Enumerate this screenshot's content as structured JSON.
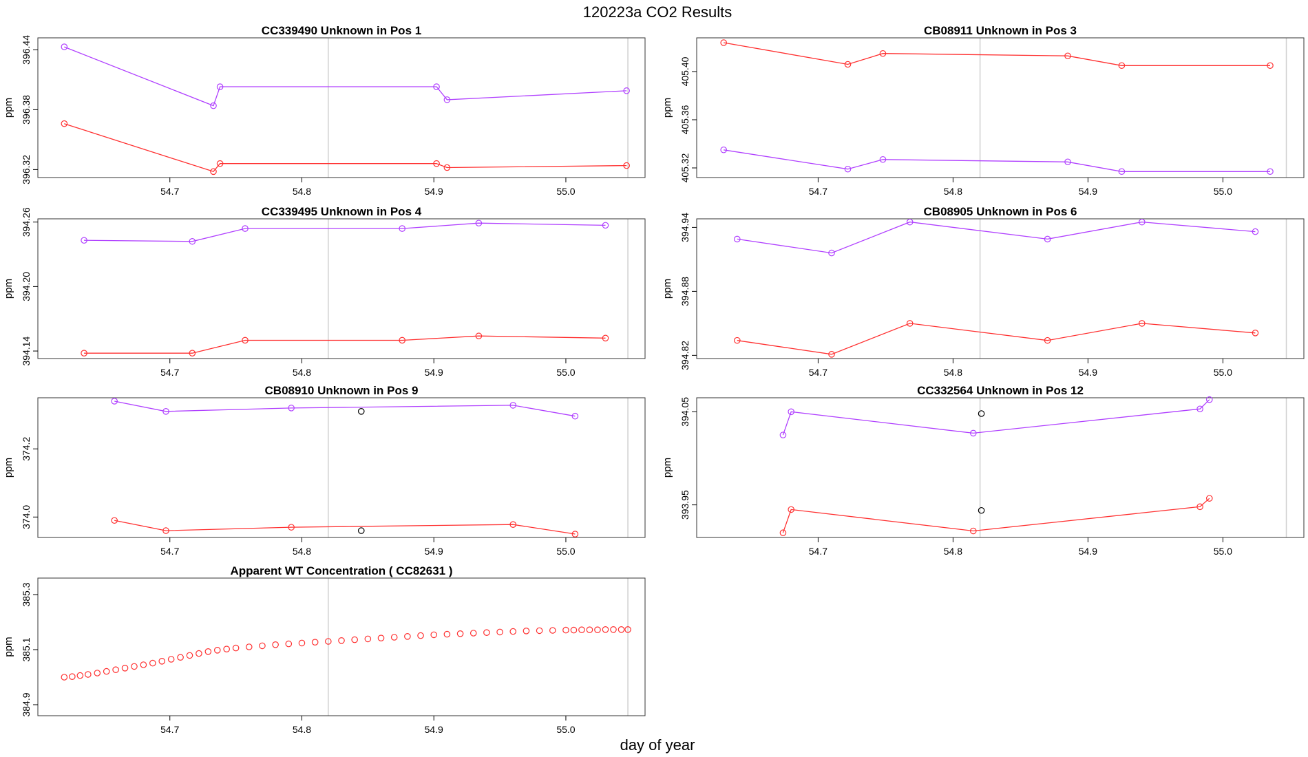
{
  "figure": {
    "title": "120223a  CO2 Results",
    "xlabel": "day of year",
    "colors": {
      "series_a": "#ff3030",
      "series_b": "#b040ff",
      "outlier": "#000000",
      "ref_line": "#d0d0d0"
    }
  },
  "chart_data": [
    {
      "type": "line",
      "title": "CC339490    Unknown in Pos 1",
      "ylabel": "ppm",
      "xlim": [
        54.6,
        55.06
      ],
      "ylim": [
        396.312,
        396.452
      ],
      "xticks": [
        54.7,
        54.8,
        54.9,
        55.0
      ],
      "xtick_labels": [
        "54.7",
        "54.8",
        "54.9",
        "55.0"
      ],
      "yticks": [
        396.32,
        396.38,
        396.44
      ],
      "ytick_labels": [
        "396.32",
        "396.38",
        "396.44"
      ],
      "vlines": [
        54.82,
        55.047
      ],
      "series": [
        {
          "color": "#b040ff",
          "x": [
            54.62,
            54.733,
            54.738,
            54.902,
            54.91,
            55.046
          ],
          "y": [
            396.443,
            396.384,
            396.403,
            396.403,
            396.39,
            396.399
          ]
        },
        {
          "color": "#ff3030",
          "x": [
            54.62,
            54.733,
            54.738,
            54.902,
            54.91,
            55.046
          ],
          "y": [
            396.366,
            396.318,
            396.326,
            396.326,
            396.322,
            396.324
          ]
        }
      ],
      "outliers": []
    },
    {
      "type": "line",
      "title": "CB08911    Unknown in Pos 3",
      "ylabel": "ppm",
      "xlim": [
        54.61,
        55.06
      ],
      "ylim": [
        405.312,
        405.428
      ],
      "xticks": [
        54.7,
        54.8,
        54.9,
        55.0
      ],
      "xtick_labels": [
        "54.7",
        "54.8",
        "54.9",
        "55.0"
      ],
      "yticks": [
        405.32,
        405.36,
        405.4
      ],
      "ytick_labels": [
        "405.32",
        "405.36",
        "405.40"
      ],
      "vlines": [
        54.82,
        55.047
      ],
      "series": [
        {
          "color": "#ff3030",
          "x": [
            54.63,
            54.722,
            54.748,
            54.885,
            54.925,
            55.035
          ],
          "y": [
            405.424,
            405.406,
            405.415,
            405.413,
            405.405,
            405.405
          ]
        },
        {
          "color": "#b040ff",
          "x": [
            54.63,
            54.722,
            54.748,
            54.885,
            54.925,
            55.035
          ],
          "y": [
            405.335,
            405.319,
            405.327,
            405.325,
            405.317,
            405.317
          ]
        }
      ],
      "outliers": []
    },
    {
      "type": "line",
      "title": "CC339495    Unknown in Pos 4",
      "ylabel": "ppm",
      "xlim": [
        54.6,
        55.06
      ],
      "ylim": [
        394.133,
        394.263
      ],
      "xticks": [
        54.7,
        54.8,
        54.9,
        55.0
      ],
      "xtick_labels": [
        "54.7",
        "54.8",
        "54.9",
        "55.0"
      ],
      "yticks": [
        394.14,
        394.2,
        394.26
      ],
      "ytick_labels": [
        "394.14",
        "394.20",
        "394.26"
      ],
      "vlines": [
        54.82,
        55.047
      ],
      "series": [
        {
          "color": "#b040ff",
          "x": [
            54.635,
            54.717,
            54.757,
            54.876,
            54.934,
            55.03
          ],
          "y": [
            394.243,
            394.242,
            394.254,
            394.254,
            394.259,
            394.257
          ]
        },
        {
          "color": "#ff3030",
          "x": [
            54.635,
            54.717,
            54.757,
            54.876,
            54.934,
            55.03
          ],
          "y": [
            394.138,
            394.138,
            394.15,
            394.15,
            394.154,
            394.152
          ]
        }
      ],
      "outliers": []
    },
    {
      "type": "line",
      "title": "CB08905    Unknown in Pos 6",
      "ylabel": "ppm",
      "xlim": [
        54.61,
        55.06
      ],
      "ylim": [
        394.817,
        394.948
      ],
      "xticks": [
        54.7,
        54.8,
        54.9,
        55.0
      ],
      "xtick_labels": [
        "54.7",
        "54.8",
        "54.9",
        "55.0"
      ],
      "yticks": [
        394.82,
        394.88,
        394.94
      ],
      "ytick_labels": [
        "394.82",
        "394.88",
        "394.94"
      ],
      "vlines": [
        54.82,
        55.047
      ],
      "series": [
        {
          "color": "#b040ff",
          "x": [
            54.64,
            54.71,
            54.768,
            54.87,
            54.94,
            55.024
          ],
          "y": [
            394.929,
            394.916,
            394.945,
            394.929,
            394.945,
            394.936
          ]
        },
        {
          "color": "#ff3030",
          "x": [
            54.64,
            54.71,
            54.768,
            54.87,
            54.94,
            55.024
          ],
          "y": [
            394.834,
            394.821,
            394.85,
            394.834,
            394.85,
            394.841
          ]
        }
      ],
      "outliers": []
    },
    {
      "type": "line",
      "title": "CB08910    Unknown in Pos 9",
      "ylabel": "ppm",
      "xlim": [
        54.6,
        55.06
      ],
      "ylim": [
        373.94,
        374.35
      ],
      "xticks": [
        54.7,
        54.8,
        54.9,
        55.0
      ],
      "xtick_labels": [
        "54.7",
        "54.8",
        "54.9",
        "55.0"
      ],
      "yticks": [
        374.0,
        374.2
      ],
      "ytick_labels": [
        "374.0",
        "374.2"
      ],
      "vlines": [
        54.82,
        55.047
      ],
      "series": [
        {
          "color": "#b040ff",
          "x": [
            54.658,
            54.697,
            54.792,
            54.96,
            55.007
          ],
          "y": [
            374.34,
            374.31,
            374.32,
            374.328,
            374.296
          ]
        },
        {
          "color": "#ff3030",
          "x": [
            54.658,
            54.697,
            54.792,
            54.96,
            55.007
          ],
          "y": [
            373.99,
            373.96,
            373.97,
            373.978,
            373.95
          ]
        }
      ],
      "outliers": [
        {
          "x": 54.845,
          "y": 374.31
        },
        {
          "x": 54.845,
          "y": 373.96
        }
      ]
    },
    {
      "type": "line",
      "title": "CC332564    Unknown in Pos 12",
      "ylabel": "ppm",
      "xlim": [
        54.61,
        55.06
      ],
      "ylim": [
        393.915,
        394.065
      ],
      "xticks": [
        54.7,
        54.8,
        54.9,
        55.0
      ],
      "xtick_labels": [
        "54.7",
        "54.8",
        "54.9",
        "55.0"
      ],
      "yticks": [
        393.95,
        394.05
      ],
      "ytick_labels": [
        "393.95",
        "394.05"
      ],
      "vlines": [
        54.82,
        55.047
      ],
      "series": [
        {
          "color": "#b040ff",
          "x": [
            54.674,
            54.68,
            54.815,
            54.983,
            54.99
          ],
          "y": [
            394.025,
            394.05,
            394.027,
            394.053,
            394.063
          ]
        },
        {
          "color": "#ff3030",
          "x": [
            54.674,
            54.68,
            54.815,
            54.983,
            54.99
          ],
          "y": [
            393.92,
            393.945,
            393.922,
            393.948,
            393.957
          ]
        }
      ],
      "outliers": [
        {
          "x": 54.821,
          "y": 394.048
        },
        {
          "x": 54.821,
          "y": 393.944
        }
      ]
    },
    {
      "type": "scatter",
      "title": "Apparent WT Concentration ( CC82631 )",
      "ylabel": "ppm",
      "xlim": [
        54.6,
        55.06
      ],
      "ylim": [
        384.86,
        385.36
      ],
      "xticks": [
        54.7,
        54.8,
        54.9,
        55.0
      ],
      "xtick_labels": [
        "54.7",
        "54.8",
        "54.9",
        "55.0"
      ],
      "yticks": [
        384.9,
        385.1,
        385.3
      ],
      "ytick_labels": [
        "384.9",
        "385.1",
        "385.3"
      ],
      "vlines": [
        54.82,
        55.047
      ],
      "series": [
        {
          "color": "#ff3030",
          "x": [
            54.62,
            54.626,
            54.632,
            54.638,
            54.645,
            54.652,
            54.659,
            54.666,
            54.673,
            54.68,
            54.687,
            54.694,
            54.701,
            54.708,
            54.715,
            54.722,
            54.729,
            54.736,
            54.743,
            54.75,
            54.76,
            54.77,
            54.78,
            54.79,
            54.8,
            54.81,
            54.82,
            54.83,
            54.84,
            54.85,
            54.86,
            54.87,
            54.88,
            54.89,
            54.9,
            54.91,
            54.92,
            54.93,
            54.94,
            54.95,
            54.96,
            54.97,
            54.98,
            54.99,
            55.0,
            55.006,
            55.012,
            55.018,
            55.024,
            55.03,
            55.036,
            55.042,
            55.047
          ],
          "y": [
            385.0,
            385.002,
            385.006,
            385.01,
            385.015,
            385.021,
            385.027,
            385.033,
            385.039,
            385.045,
            385.051,
            385.058,
            385.065,
            385.072,
            385.079,
            385.086,
            385.093,
            385.098,
            385.102,
            385.106,
            385.11,
            385.114,
            385.118,
            385.121,
            385.124,
            385.127,
            385.13,
            385.133,
            385.136,
            385.139,
            385.142,
            385.145,
            385.148,
            385.151,
            385.154,
            385.156,
            385.158,
            385.16,
            385.162,
            385.164,
            385.166,
            385.168,
            385.169,
            385.17,
            385.171,
            385.171,
            385.172,
            385.172,
            385.172,
            385.173,
            385.173,
            385.173,
            385.173
          ]
        }
      ],
      "outliers": []
    }
  ]
}
